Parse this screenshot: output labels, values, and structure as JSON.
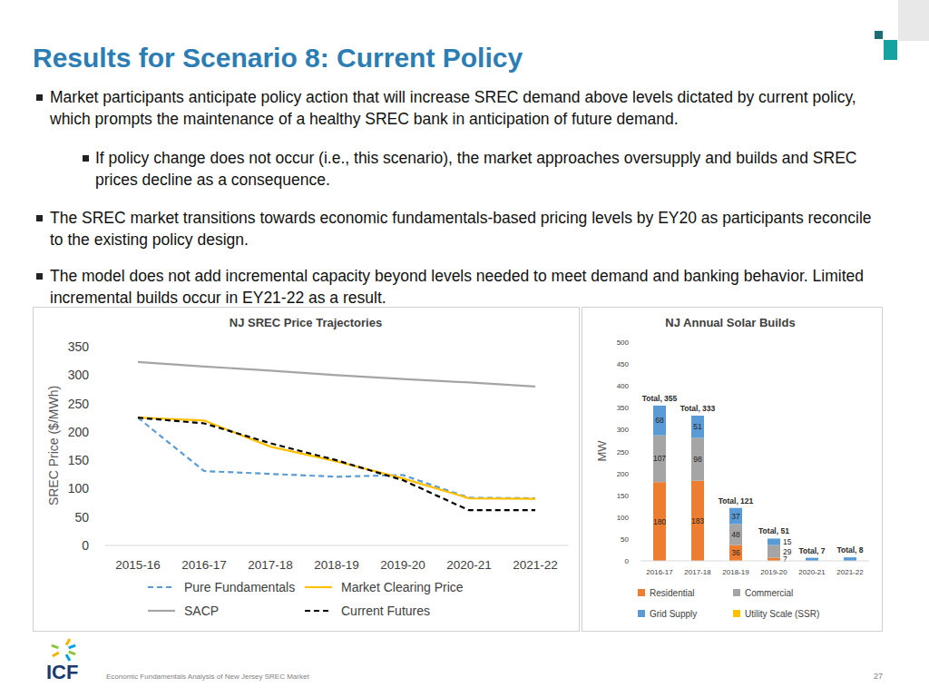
{
  "slide": {
    "title": "Results for Scenario 8: Current Policy",
    "bullets": [
      {
        "text": "Market participants anticipate policy action that will increase SREC demand above levels dictated by current policy, which prompts the maintenance of a healthy SREC bank in anticipation of future demand.",
        "sub_bullets": [
          "If policy change does not occur (i.e., this scenario), the market approaches oversupply and builds and SREC prices decline as a consequence."
        ]
      },
      {
        "text": "The SREC market transitions towards economic fundamentals-based pricing levels by EY20 as participants reconcile to the existing policy design."
      },
      {
        "text": "The model does not add incremental capacity beyond levels needed to meet demand and banking behavior. Limited incremental builds occur in EY21-22 as a result."
      }
    ],
    "logo": "ICF",
    "footer": "Economic Fundamentals Analysis of New Jersey SREC Market",
    "page": "27"
  },
  "chart_data": [
    {
      "type": "line",
      "title": "NJ SREC Price Trajectories",
      "y_label": "SREC Price ($/MWh)",
      "categories": [
        "2015-16",
        "2016-17",
        "2017-18",
        "2018-19",
        "2019-20",
        "2020-21",
        "2021-22"
      ],
      "ylim": [
        0,
        350
      ],
      "yticks": [
        0,
        50,
        100,
        150,
        200,
        250,
        300,
        350
      ],
      "grid": false,
      "legend": "bottom",
      "series": [
        {
          "name": "Pure Fundamentals",
          "color": "#5b9bd5",
          "line_style": "dashed",
          "values": [
            225,
            131,
            126,
            121,
            124,
            84,
            83
          ]
        },
        {
          "name": "Market Clearing Price",
          "color": "#ffc000",
          "line_style": "solid",
          "values": [
            225,
            220,
            174,
            148,
            118,
            83,
            82
          ]
        },
        {
          "name": "SACP",
          "color": "#a5a5a5",
          "line_style": "solid",
          "values": [
            323,
            315,
            308,
            300,
            293,
            287,
            280
          ]
        },
        {
          "name": "Current Futures",
          "color": "#000000",
          "line_style": "dashed",
          "values": [
            225,
            215,
            180,
            150,
            115,
            62,
            62
          ]
        }
      ]
    },
    {
      "type": "bar",
      "title": "NJ Annual Solar Builds",
      "y_label": "MW",
      "stacked": true,
      "data_labels": true,
      "categories": [
        "2016-17",
        "2017-18",
        "2018-19",
        "2019-20",
        "2020-21",
        "2021-22"
      ],
      "ylim": [
        0,
        500
      ],
      "yticks": [
        0,
        50,
        100,
        150,
        200,
        250,
        300,
        350,
        400,
        450,
        500
      ],
      "grid": false,
      "legend": "bottom",
      "annotations": [
        "Total, 355",
        "Total, 333",
        "Total, 121",
        "Total, 51",
        "Total, 7",
        "Total, 8"
      ],
      "series": [
        {
          "name": "Residential",
          "color": "#ed7d31",
          "values": [
            180,
            183,
            36,
            7,
            0,
            0
          ],
          "value_labels": [
            "180",
            "183",
            "36",
            "7",
            null,
            null
          ]
        },
        {
          "name": "Commercial",
          "color": "#a5a5a5",
          "values": [
            107,
            98,
            48,
            29,
            0,
            0
          ],
          "value_labels": [
            "107",
            "98",
            "48",
            "29",
            null,
            null
          ]
        },
        {
          "name": "Grid Supply",
          "color": "#5b9bd5",
          "values": [
            68,
            51,
            37,
            15,
            7,
            8
          ],
          "value_labels": [
            "68",
            "51",
            "37",
            "15",
            null,
            null
          ]
        },
        {
          "name": "Utility Scale (SSR)",
          "color": "#ffc000",
          "values": [
            0,
            0,
            0,
            0,
            0,
            0
          ],
          "value_labels": [
            null,
            null,
            null,
            null,
            null,
            null
          ]
        }
      ]
    }
  ]
}
